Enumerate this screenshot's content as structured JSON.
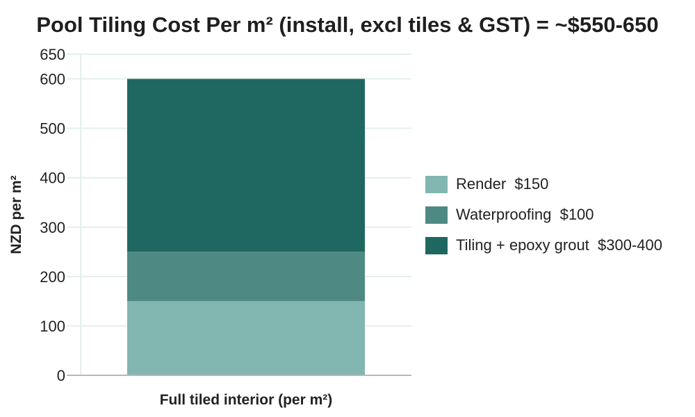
{
  "chart_data": {
    "type": "bar",
    "stacked": true,
    "title": "Pool Tiling Cost Per m² (install, excl tiles & GST) = ~$550-650",
    "xlabel": "Full tiled interior (per m²)",
    "ylabel": "NZD per m²",
    "categories": [
      "Full tiled interior (per m²)"
    ],
    "ylim": [
      0,
      650
    ],
    "yticks": [
      0,
      100,
      200,
      300,
      400,
      500,
      600,
      650
    ],
    "grid": true,
    "legend_position": "right",
    "series": [
      {
        "name": "Render",
        "legend_label": "Render  $150",
        "values": [
          150
        ],
        "color": "#82b6b0"
      },
      {
        "name": "Waterproofing",
        "legend_label": "Waterproofing  $100",
        "values": [
          100
        ],
        "color": "#4e8a83"
      },
      {
        "name": "Tiling + epoxy grout",
        "legend_label": "Tiling + epoxy grout  $300-400",
        "values": [
          350
        ],
        "color": "#1f6861"
      }
    ]
  }
}
